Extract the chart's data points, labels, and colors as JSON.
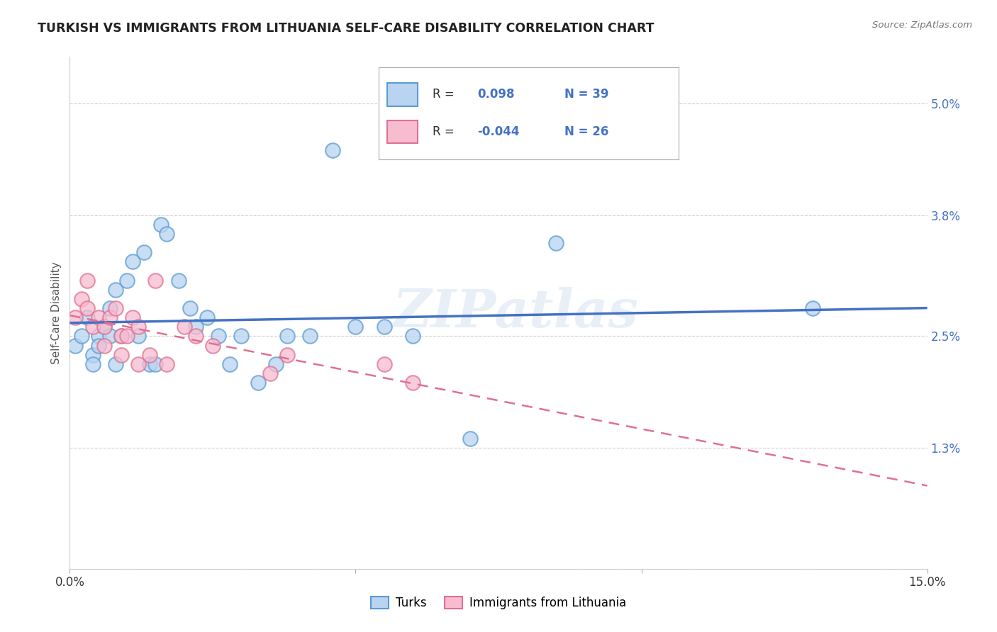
{
  "title": "TURKISH VS IMMIGRANTS FROM LITHUANIA SELF-CARE DISABILITY CORRELATION CHART",
  "source": "Source: ZipAtlas.com",
  "ylabel": "Self-Care Disability",
  "xlim": [
    0.0,
    0.15
  ],
  "ylim": [
    0.0,
    0.055
  ],
  "xticks": [
    0.0,
    0.05,
    0.1,
    0.15
  ],
  "xticklabels": [
    "0.0%",
    "",
    "",
    "15.0%"
  ],
  "yticks": [
    0.0,
    0.013,
    0.025,
    0.038,
    0.05
  ],
  "yticklabels": [
    "",
    "1.3%",
    "2.5%",
    "3.8%",
    "5.0%"
  ],
  "watermark": "ZIPatlas",
  "legend_r_blue": "R =  0.098",
  "legend_n_blue": "N = 39",
  "legend_r_pink": "R = -0.044",
  "legend_n_pink": "N = 26",
  "blue_fill": "#b8d4f0",
  "blue_edge": "#5b9bd5",
  "pink_fill": "#f8bcd0",
  "pink_edge": "#e07090",
  "line_blue_color": "#4472c4",
  "line_pink_color": "#e07090",
  "grid_color": "#cccccc",
  "background_color": "#ffffff",
  "text_color_blue": "#4472c4",
  "text_color_dark": "#333333",
  "turks_x": [
    0.001,
    0.002,
    0.003,
    0.004,
    0.004,
    0.005,
    0.005,
    0.006,
    0.007,
    0.007,
    0.008,
    0.008,
    0.009,
    0.01,
    0.011,
    0.012,
    0.013,
    0.014,
    0.015,
    0.016,
    0.017,
    0.019,
    0.021,
    0.022,
    0.024,
    0.026,
    0.028,
    0.03,
    0.033,
    0.036,
    0.038,
    0.042,
    0.046,
    0.05,
    0.055,
    0.06,
    0.07,
    0.085,
    0.13
  ],
  "turks_y": [
    0.024,
    0.025,
    0.027,
    0.023,
    0.022,
    0.025,
    0.024,
    0.026,
    0.028,
    0.025,
    0.03,
    0.022,
    0.025,
    0.031,
    0.033,
    0.025,
    0.034,
    0.022,
    0.022,
    0.037,
    0.036,
    0.031,
    0.028,
    0.026,
    0.027,
    0.025,
    0.022,
    0.025,
    0.02,
    0.022,
    0.025,
    0.025,
    0.045,
    0.026,
    0.026,
    0.025,
    0.014,
    0.035,
    0.028
  ],
  "lith_x": [
    0.001,
    0.002,
    0.003,
    0.003,
    0.004,
    0.005,
    0.006,
    0.006,
    0.007,
    0.008,
    0.009,
    0.009,
    0.01,
    0.011,
    0.012,
    0.012,
    0.014,
    0.015,
    0.017,
    0.02,
    0.022,
    0.025,
    0.035,
    0.038,
    0.055,
    0.06
  ],
  "lith_y": [
    0.027,
    0.029,
    0.031,
    0.028,
    0.026,
    0.027,
    0.024,
    0.026,
    0.027,
    0.028,
    0.025,
    0.023,
    0.025,
    0.027,
    0.026,
    0.022,
    0.023,
    0.031,
    0.022,
    0.026,
    0.025,
    0.024,
    0.021,
    0.023,
    0.022,
    0.02
  ]
}
